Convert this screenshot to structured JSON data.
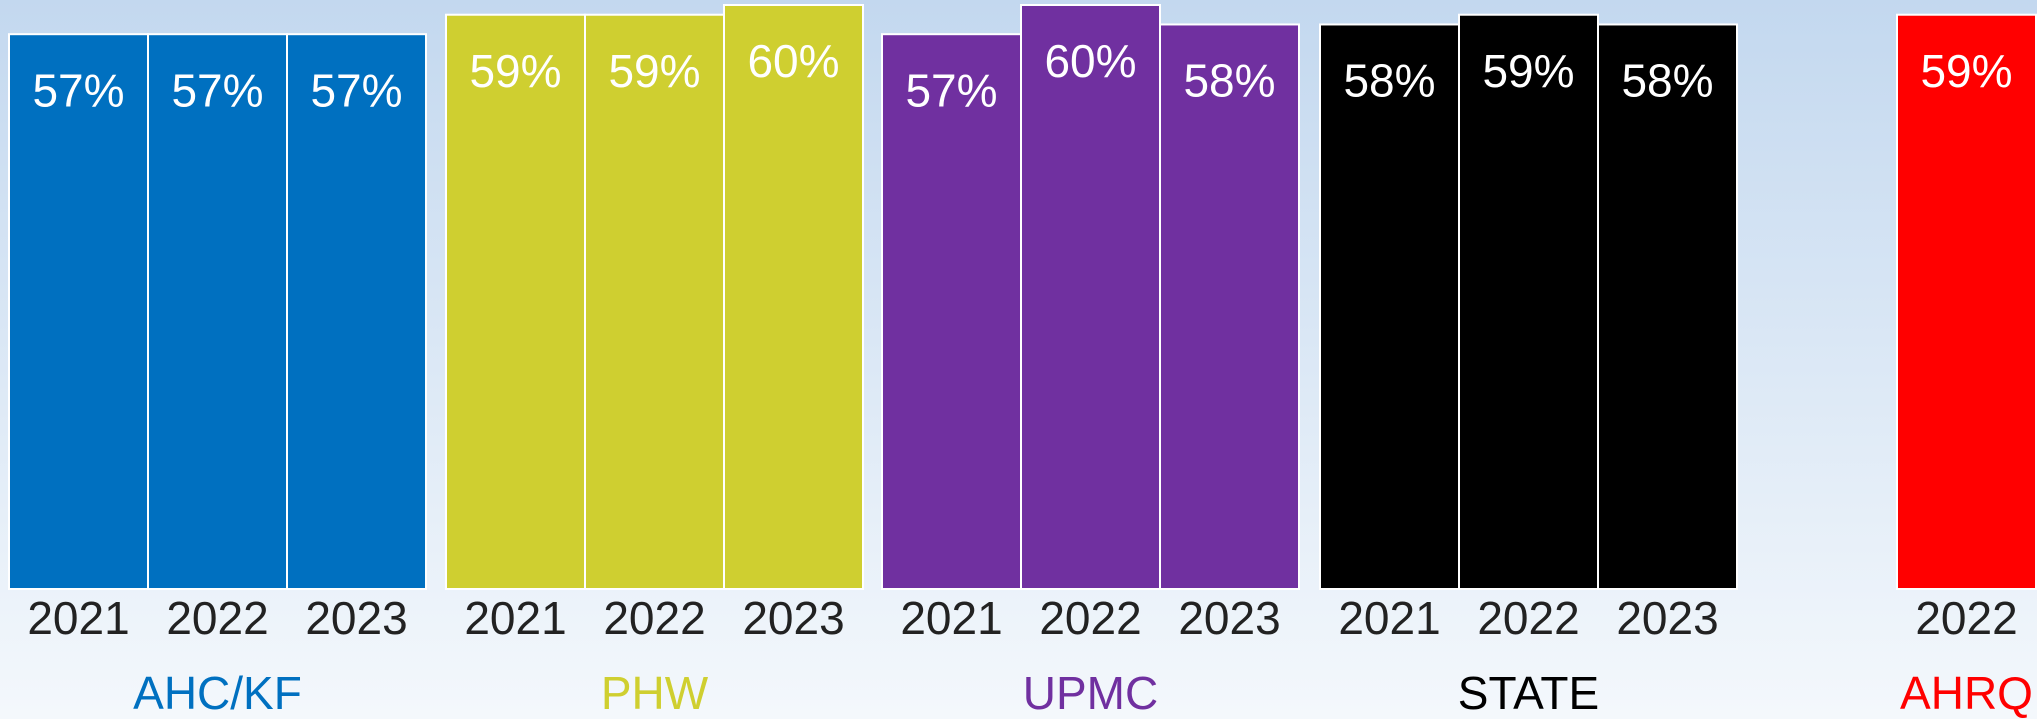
{
  "chart_data": {
    "type": "bar",
    "groups": [
      {
        "name": "AHC/KF",
        "color": "#0070c0",
        "categories": [
          "2021",
          "2022",
          "2023"
        ],
        "values": [
          57,
          57,
          57
        ],
        "value_labels": [
          "57%",
          "57%",
          "57%"
        ]
      },
      {
        "name": "PHW",
        "color": "#cfcf30",
        "categories": [
          "2021",
          "2022",
          "2023"
        ],
        "values": [
          59,
          59,
          60
        ],
        "value_labels": [
          "59%",
          "59%",
          "60%"
        ]
      },
      {
        "name": "UPMC",
        "color": "#7030a0",
        "categories": [
          "2021",
          "2022",
          "2023"
        ],
        "values": [
          57,
          60,
          58
        ],
        "value_labels": [
          "57%",
          "60%",
          "58%"
        ]
      },
      {
        "name": "STATE",
        "color": "#000000",
        "categories": [
          "2021",
          "2022",
          "2023"
        ],
        "values": [
          58,
          59,
          58
        ],
        "value_labels": [
          "58%",
          "59%",
          "58%"
        ]
      },
      {
        "name": "AHRQ",
        "color": "#ff0000",
        "categories": [
          "2022"
        ],
        "values": [
          59
        ],
        "value_labels": [
          "59%"
        ]
      }
    ]
  }
}
